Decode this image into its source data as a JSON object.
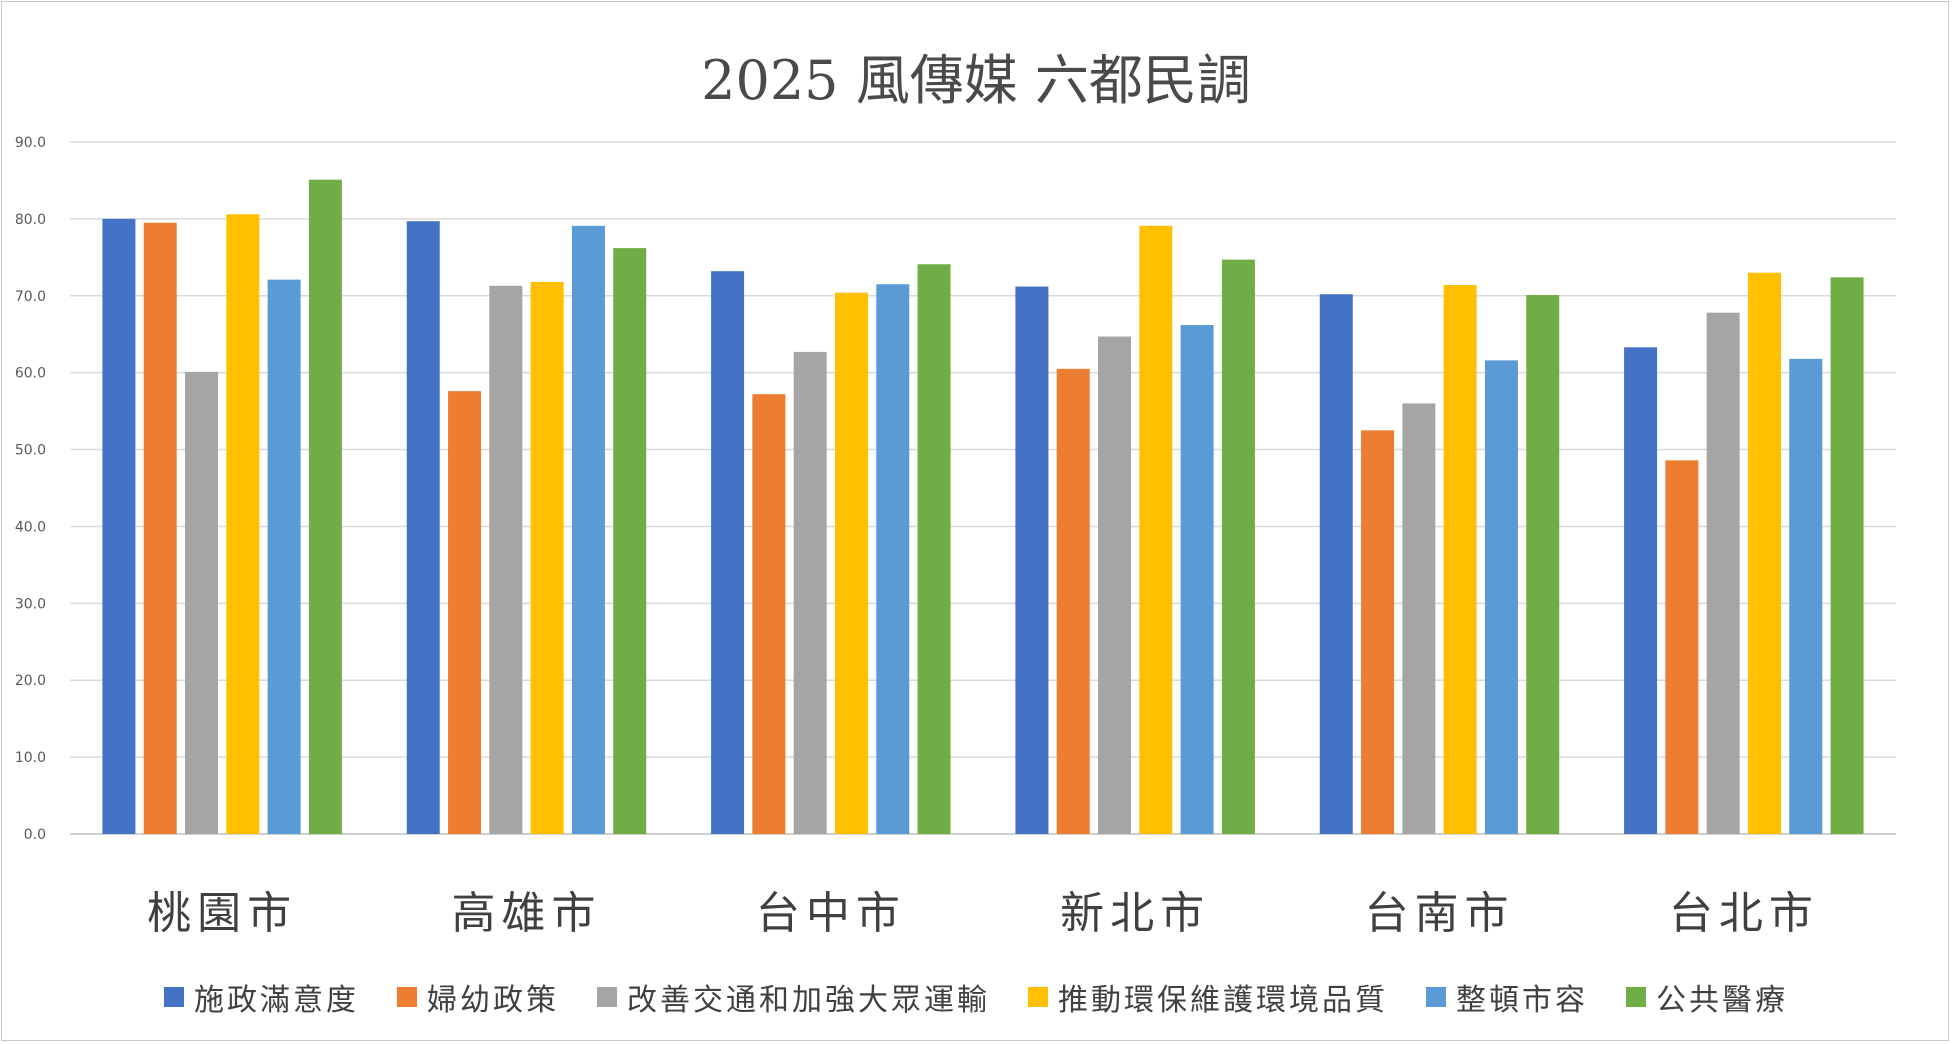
{
  "chart_data": {
    "type": "bar",
    "title": "2025 風傳媒  六都民調",
    "categories": [
      "桃園市",
      "高雄市",
      "台中市",
      "新北市",
      "台南市",
      "台北市"
    ],
    "series": [
      {
        "name": "施政滿意度",
        "color": "#4472C4",
        "values": [
          80.0,
          79.7,
          73.2,
          71.2,
          70.2,
          63.3
        ]
      },
      {
        "name": "婦幼政策",
        "color": "#ED7D31",
        "values": [
          79.5,
          57.6,
          57.2,
          60.5,
          52.5,
          48.6
        ]
      },
      {
        "name": "改善交通和加強大眾運輸",
        "color": "#A5A5A5",
        "values": [
          60.1,
          71.3,
          62.7,
          64.7,
          56.0,
          67.8
        ]
      },
      {
        "name": "推動環保維護環境品質",
        "color": "#FFC000",
        "values": [
          80.6,
          71.8,
          70.4,
          79.1,
          71.4,
          73.0
        ]
      },
      {
        "name": "整頓市容",
        "color": "#5B9BD5",
        "values": [
          72.1,
          79.1,
          71.5,
          66.2,
          61.6,
          61.8
        ]
      },
      {
        "name": "公共醫療",
        "color": "#70AD47",
        "values": [
          85.1,
          76.2,
          74.1,
          74.7,
          70.1,
          72.4
        ]
      }
    ],
    "ylim": [
      0,
      90
    ],
    "yticks": [
      "0.0",
      "10.0",
      "20.0",
      "30.0",
      "40.0",
      "50.0",
      "60.0",
      "70.0",
      "80.0",
      "90.0"
    ],
    "grid": true,
    "legend_position": "bottom"
  }
}
